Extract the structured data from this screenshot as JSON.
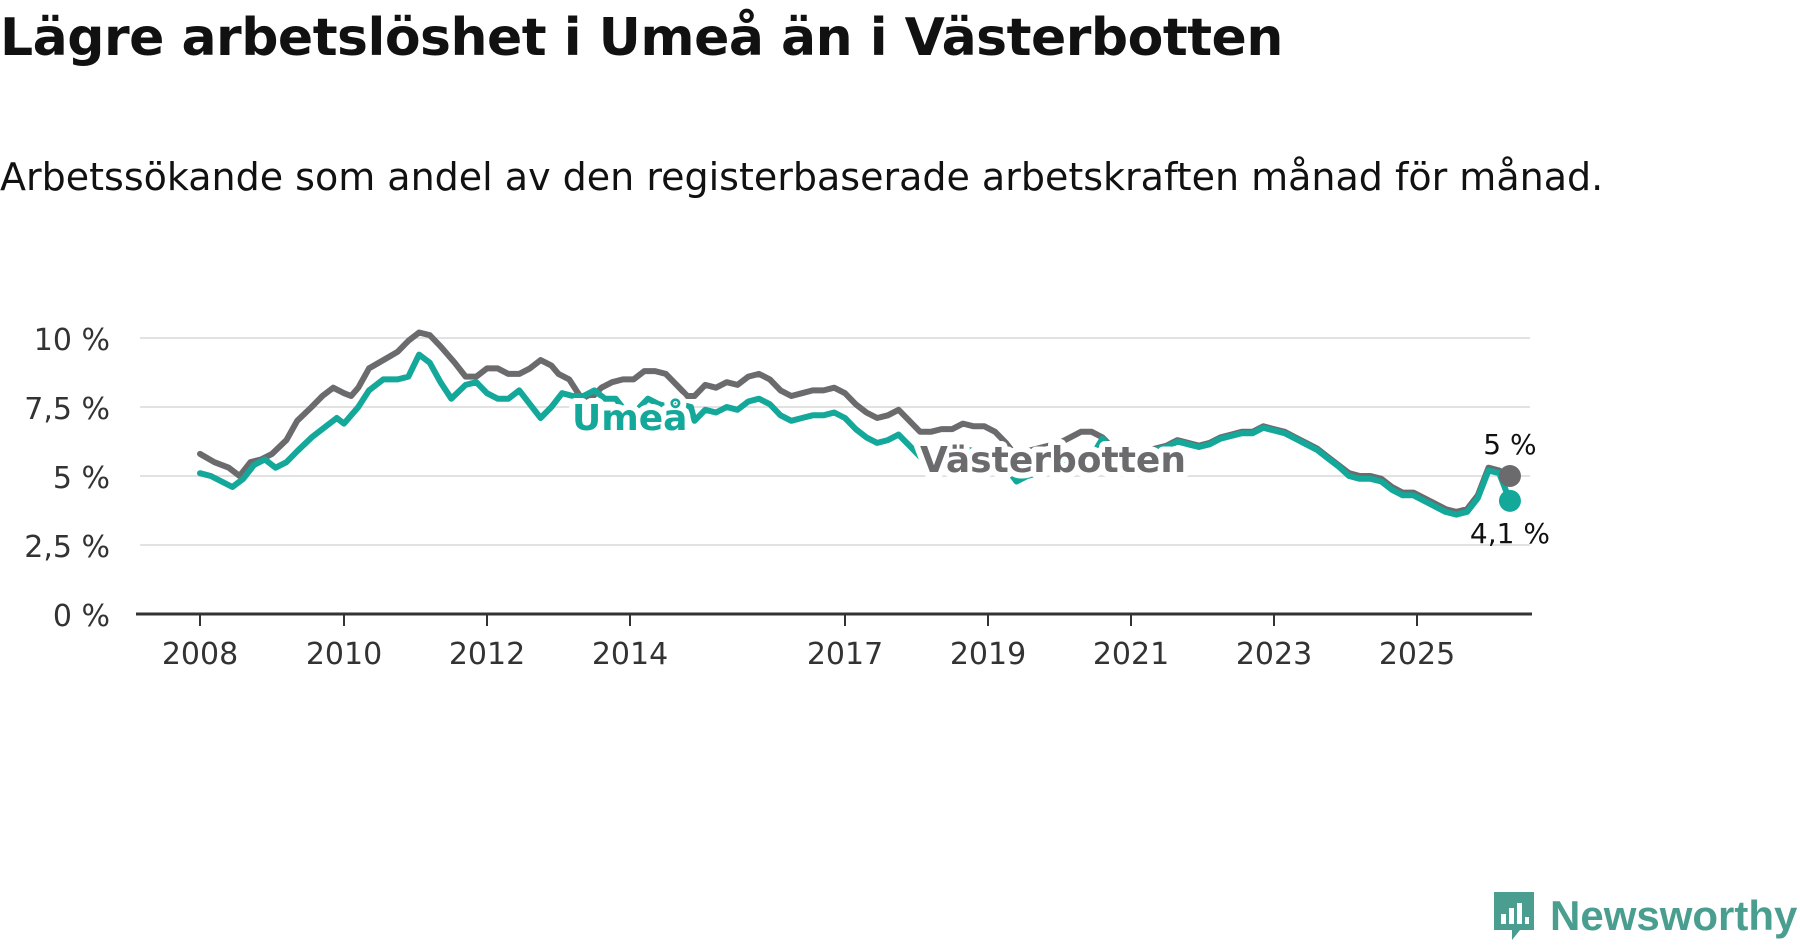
{
  "title": "Lägre arbetslöshet i Umeå än i Västerbotten",
  "subtitle": "Arbetssökande som andel av den registerbaserade arbetskraften månad för månad.",
  "brand": {
    "name": "Newsworthy",
    "icon": "newsworthy-logo-icon",
    "color": "#4a9e8f"
  },
  "chart_data": {
    "type": "line",
    "title": "Lägre arbetslöshet i Umeå än i Västerbotten",
    "subtitle": "Arbetssökande som andel av den registerbaserade arbetskraften månad för månad.",
    "xlabel": "",
    "ylabel": "",
    "x_range": [
      2008,
      2026.3
    ],
    "ylim": [
      0,
      10.3
    ],
    "yticks": [
      0,
      2.5,
      5,
      7.5,
      10
    ],
    "ytick_labels": [
      "0 %",
      "2,5 %",
      "5 %",
      "7,5 %",
      "10 %"
    ],
    "xticks": [
      2008,
      2010,
      2012,
      2014,
      2017,
      2019,
      2021,
      2023,
      2025
    ],
    "xtick_labels": [
      "2008",
      "2010",
      "2012",
      "2014",
      "2017",
      "2019",
      "2021",
      "2023",
      "2025"
    ],
    "grid": true,
    "series": [
      {
        "name": "Västerbotten",
        "color": "#6b6b6e",
        "end_label": "5 %",
        "points": [
          [
            2008,
            5.8
          ],
          [
            2008.2,
            5.5
          ],
          [
            2008.4,
            5.3
          ],
          [
            2008.55,
            5.0
          ],
          [
            2008.7,
            5.5
          ],
          [
            2008.85,
            5.6
          ],
          [
            2009,
            5.8
          ],
          [
            2009.2,
            6.3
          ],
          [
            2009.35,
            7.0
          ],
          [
            2009.55,
            7.5
          ],
          [
            2009.7,
            7.9
          ],
          [
            2009.85,
            8.2
          ],
          [
            2010,
            8.0
          ],
          [
            2010.1,
            7.9
          ],
          [
            2010.2,
            8.2
          ],
          [
            2010.35,
            8.9
          ],
          [
            2010.55,
            9.2
          ],
          [
            2010.75,
            9.5
          ],
          [
            2010.9,
            9.9
          ],
          [
            2011.05,
            10.2
          ],
          [
            2011.2,
            10.1
          ],
          [
            2011.35,
            9.7
          ],
          [
            2011.55,
            9.1
          ],
          [
            2011.7,
            8.6
          ],
          [
            2011.85,
            8.6
          ],
          [
            2012,
            8.9
          ],
          [
            2012.15,
            8.9
          ],
          [
            2012.3,
            8.7
          ],
          [
            2012.45,
            8.7
          ],
          [
            2012.6,
            8.9
          ],
          [
            2012.75,
            9.2
          ],
          [
            2012.9,
            9.0
          ],
          [
            2013,
            8.7
          ],
          [
            2013.15,
            8.5
          ],
          [
            2013.3,
            7.9
          ],
          [
            2013.45,
            7.8
          ],
          [
            2013.6,
            8.2
          ],
          [
            2013.75,
            8.4
          ],
          [
            2013.9,
            8.5
          ],
          [
            2014.05,
            8.5
          ],
          [
            2014.2,
            8.8
          ],
          [
            2014.35,
            8.8
          ],
          [
            2014.5,
            8.7
          ],
          [
            2014.65,
            8.3
          ],
          [
            2014.8,
            7.9
          ],
          [
            2014.9,
            7.9
          ],
          [
            2015.05,
            8.3
          ],
          [
            2015.2,
            8.2
          ],
          [
            2015.35,
            8.4
          ],
          [
            2015.5,
            8.3
          ],
          [
            2015.65,
            8.6
          ],
          [
            2015.8,
            8.7
          ],
          [
            2015.95,
            8.5
          ],
          [
            2016.1,
            8.1
          ],
          [
            2016.25,
            7.9
          ],
          [
            2016.4,
            8.0
          ],
          [
            2016.55,
            8.1
          ],
          [
            2016.7,
            8.1
          ],
          [
            2016.85,
            8.2
          ],
          [
            2017,
            8.0
          ],
          [
            2017.15,
            7.6
          ],
          [
            2017.3,
            7.3
          ],
          [
            2017.45,
            7.1
          ],
          [
            2017.6,
            7.2
          ],
          [
            2017.75,
            7.4
          ],
          [
            2017.9,
            7.0
          ],
          [
            2018.05,
            6.6
          ],
          [
            2018.2,
            6.6
          ],
          [
            2018.35,
            6.7
          ],
          [
            2018.5,
            6.7
          ],
          [
            2018.65,
            6.9
          ],
          [
            2018.8,
            6.8
          ],
          [
            2018.95,
            6.8
          ],
          [
            2019.1,
            6.6
          ],
          [
            2019.25,
            6.2
          ],
          [
            2019.4,
            5.7
          ],
          [
            2019.55,
            5.9
          ],
          [
            2019.7,
            6.0
          ],
          [
            2019.85,
            6.1
          ],
          [
            2020.0,
            6.2
          ],
          [
            2020.15,
            6.4
          ],
          [
            2020.3,
            6.6
          ],
          [
            2020.45,
            6.6
          ],
          [
            2020.6,
            6.4
          ],
          [
            2020.75,
            6.0
          ],
          [
            2020.9,
            5.7
          ],
          [
            2021.05,
            5.8
          ],
          [
            2021.2,
            5.9
          ],
          [
            2021.35,
            6.0
          ],
          [
            2021.5,
            6.1
          ],
          [
            2021.65,
            6.3
          ],
          [
            2021.8,
            6.2
          ],
          [
            2021.95,
            6.1
          ],
          [
            2022.1,
            6.2
          ],
          [
            2022.25,
            6.4
          ],
          [
            2022.4,
            6.5
          ],
          [
            2022.55,
            6.6
          ],
          [
            2022.7,
            6.6
          ],
          [
            2022.85,
            6.8
          ],
          [
            2023.0,
            6.7
          ],
          [
            2023.15,
            6.6
          ],
          [
            2023.3,
            6.4
          ],
          [
            2023.45,
            6.2
          ],
          [
            2023.6,
            6.0
          ],
          [
            2023.75,
            5.7
          ],
          [
            2023.9,
            5.4
          ],
          [
            2024.05,
            5.1
          ],
          [
            2024.2,
            5.0
          ],
          [
            2024.35,
            5.0
          ],
          [
            2024.5,
            4.9
          ],
          [
            2024.65,
            4.6
          ],
          [
            2024.8,
            4.4
          ],
          [
            2024.95,
            4.4
          ],
          [
            2025.1,
            4.2
          ],
          [
            2025.25,
            4.0
          ],
          [
            2025.4,
            3.8
          ],
          [
            2025.55,
            3.7
          ],
          [
            2025.7,
            3.8
          ],
          [
            2025.85,
            4.3
          ],
          [
            2026.0,
            5.3
          ],
          [
            2026.15,
            5.2
          ],
          [
            2026.3,
            5.0
          ]
        ]
      },
      {
        "name": "Umeå",
        "color": "#13a89a",
        "end_label": "4,1 %",
        "points": [
          [
            2008,
            5.1
          ],
          [
            2008.15,
            5.0
          ],
          [
            2008.3,
            4.8
          ],
          [
            2008.45,
            4.6
          ],
          [
            2008.6,
            4.9
          ],
          [
            2008.75,
            5.4
          ],
          [
            2008.9,
            5.6
          ],
          [
            2009.05,
            5.3
          ],
          [
            2009.2,
            5.5
          ],
          [
            2009.35,
            5.9
          ],
          [
            2009.55,
            6.4
          ],
          [
            2009.75,
            6.8
          ],
          [
            2009.9,
            7.1
          ],
          [
            2010,
            6.9
          ],
          [
            2010.2,
            7.5
          ],
          [
            2010.35,
            8.1
          ],
          [
            2010.55,
            8.5
          ],
          [
            2010.75,
            8.5
          ],
          [
            2010.9,
            8.6
          ],
          [
            2011.05,
            9.4
          ],
          [
            2011.2,
            9.1
          ],
          [
            2011.35,
            8.4
          ],
          [
            2011.5,
            7.8
          ],
          [
            2011.7,
            8.3
          ],
          [
            2011.85,
            8.4
          ],
          [
            2012.0,
            8.0
          ],
          [
            2012.15,
            7.8
          ],
          [
            2012.3,
            7.8
          ],
          [
            2012.45,
            8.1
          ],
          [
            2012.6,
            7.6
          ],
          [
            2012.75,
            7.1
          ],
          [
            2012.9,
            7.5
          ],
          [
            2013.05,
            8.0
          ],
          [
            2013.2,
            7.9
          ],
          [
            2013.35,
            7.9
          ],
          [
            2013.5,
            8.1
          ],
          [
            2013.65,
            7.8
          ],
          [
            2013.8,
            7.8
          ],
          [
            2013.95,
            7.3
          ],
          [
            2014.1,
            7.4
          ],
          [
            2014.25,
            7.8
          ],
          [
            2014.4,
            7.6
          ],
          [
            2014.55,
            7.5
          ],
          [
            2014.7,
            7.6
          ],
          [
            2014.85,
            7.5
          ]
        ]
      }
    ],
    "inline_labels": [
      "Umeå",
      "Västerbotten"
    ]
  }
}
